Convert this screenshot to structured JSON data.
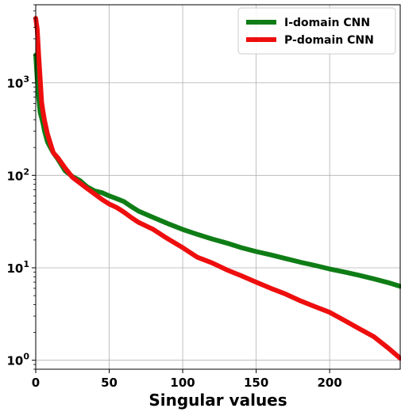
{
  "chart_data": {
    "type": "line",
    "title": "",
    "xlabel": "Singular values",
    "ylabel": "",
    "xlim": [
      0,
      248
    ],
    "ylim": [
      0.8,
      7000
    ],
    "yscale": "log",
    "grid": true,
    "legend_position": "top-right",
    "x_ticks": [
      0,
      50,
      100,
      150,
      200
    ],
    "x_tick_labels": [
      "0",
      "50",
      "100",
      "150",
      "200"
    ],
    "y_ticks": [
      1,
      10,
      100,
      1000
    ],
    "y_tick_labels": [
      {
        "base": "10",
        "exp": "0"
      },
      {
        "base": "10",
        "exp": "1"
      },
      {
        "base": "10",
        "exp": "2"
      },
      {
        "base": "10",
        "exp": "3"
      }
    ],
    "series": [
      {
        "name": "I-domain CNN",
        "color": "#0f7d16",
        "x": [
          0,
          1,
          2,
          3,
          4,
          5,
          6,
          8,
          10,
          12,
          15,
          20,
          25,
          30,
          35,
          40,
          45,
          50,
          55,
          60,
          65,
          70,
          80,
          90,
          100,
          110,
          120,
          130,
          140,
          150,
          160,
          170,
          180,
          190,
          200,
          210,
          220,
          230,
          240,
          248
        ],
        "y": [
          2000,
          1100,
          700,
          480,
          420,
          360,
          300,
          230,
          200,
          175,
          150,
          112,
          97,
          88,
          75,
          68,
          65,
          60,
          56,
          52,
          46,
          41,
          35,
          30,
          26,
          23,
          20.5,
          18.5,
          16.5,
          15,
          13.8,
          12.6,
          11.5,
          10.6,
          9.7,
          9.0,
          8.3,
          7.6,
          6.9,
          6.3
        ]
      },
      {
        "name": "P-domain CNN",
        "color": "#ee0e0e",
        "x": [
          0,
          1,
          2,
          3,
          4,
          5,
          6,
          8,
          10,
          12,
          15,
          20,
          25,
          30,
          35,
          40,
          45,
          50,
          55,
          60,
          65,
          70,
          80,
          90,
          100,
          110,
          120,
          130,
          140,
          150,
          160,
          170,
          180,
          190,
          200,
          210,
          220,
          230,
          240,
          248
        ],
        "y": [
          5000,
          3800,
          2000,
          1100,
          620,
          480,
          390,
          280,
          220,
          175,
          155,
          120,
          95,
          83,
          72,
          63,
          55,
          49,
          45,
          40,
          35,
          31,
          26,
          20.5,
          16.5,
          13,
          11.3,
          9.5,
          8.2,
          7.0,
          6.0,
          5.2,
          4.4,
          3.8,
          3.3,
          2.7,
          2.2,
          1.8,
          1.35,
          1.05
        ]
      }
    ]
  }
}
